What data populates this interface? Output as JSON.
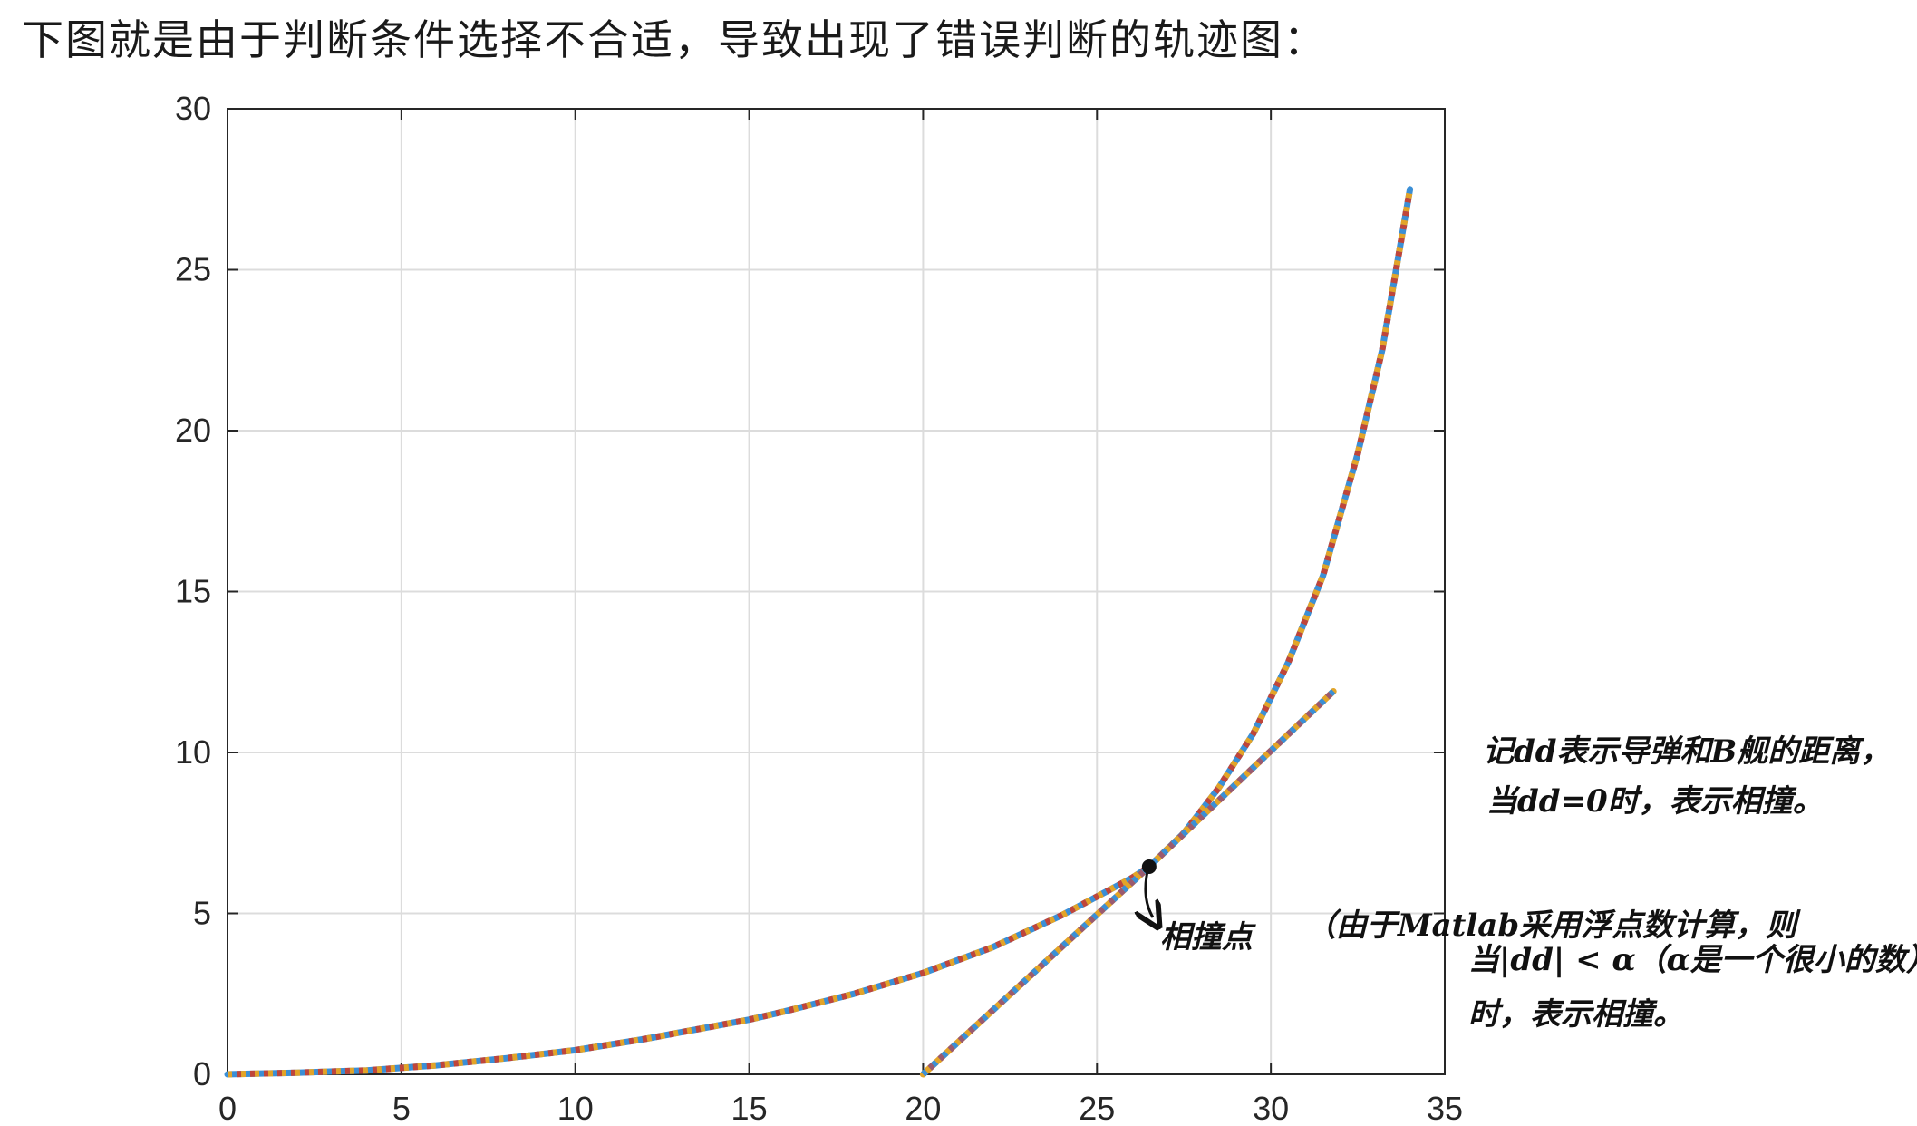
{
  "caption": "下图就是由于判断条件选择不合适，导致出现了错误判断的轨迹图：",
  "chart_data": {
    "type": "line",
    "xlim": [
      0,
      35
    ],
    "ylim": [
      0,
      30
    ],
    "x_ticks": [
      "0",
      "5",
      "10",
      "15",
      "20",
      "25",
      "30",
      "35"
    ],
    "y_ticks": [
      "0",
      "5",
      "10",
      "15",
      "20",
      "25",
      "30"
    ],
    "grid": true,
    "series": [
      {
        "x": [
          0,
          2,
          4,
          5,
          6,
          8,
          10,
          12,
          14,
          15,
          16,
          18,
          20,
          22,
          24,
          26,
          26.5,
          27.5,
          28.5,
          29.5,
          30.5,
          31.5,
          32.5,
          33.2,
          33.6,
          34
        ],
        "y": [
          0,
          0.05,
          0.12,
          0.2,
          0.28,
          0.5,
          0.75,
          1.1,
          1.5,
          1.7,
          1.95,
          2.5,
          3.15,
          3.95,
          4.95,
          6.1,
          6.45,
          7.5,
          8.9,
          10.6,
          12.8,
          15.5,
          19.3,
          22.5,
          25.0,
          27.5
        ],
        "colors": [
          "#3b8fd6",
          "#e3a428",
          "#c0453a"
        ]
      },
      {
        "x": [
          20,
          26.5,
          31.8
        ],
        "y": [
          0,
          6.45,
          11.9
        ],
        "colors": [
          "#e3a428",
          "#3b8fd6",
          "#9a5a70"
        ]
      }
    ],
    "points": [
      {
        "x": 26.5,
        "y": 6.45
      }
    ]
  },
  "annotations": {
    "note1_line1": "记dd表示导弹和B舰的距离，",
    "note1_line2": "当dd=0时，表示相撞。",
    "collision_label": "相撞点",
    "note2_line1": "（由于Matlab采用浮点数计算，则",
    "note2_line2": "当|dd| < α（α是一个很小的数）",
    "note2_line3": "时，表示相撞。"
  }
}
